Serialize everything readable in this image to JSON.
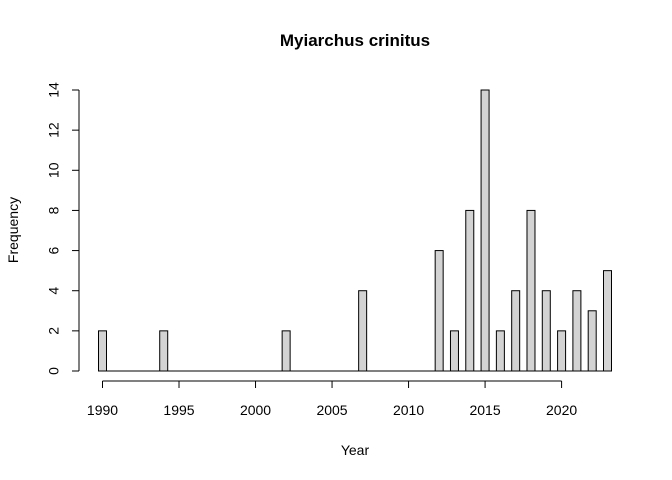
{
  "chart_data": {
    "type": "bar",
    "title": "Myiarchus crinitus",
    "xlabel": "Year",
    "ylabel": "Frequency",
    "x": [
      1990,
      1991,
      1992,
      1993,
      1994,
      1995,
      1996,
      1997,
      1998,
      1999,
      2000,
      2001,
      2002,
      2003,
      2004,
      2005,
      2006,
      2007,
      2008,
      2009,
      2010,
      2011,
      2012,
      2013,
      2014,
      2015,
      2016,
      2017,
      2018,
      2019,
      2020,
      2021,
      2022,
      2023
    ],
    "values": [
      2,
      0,
      0,
      0,
      2,
      0,
      0,
      0,
      0,
      0,
      0,
      0,
      2,
      0,
      0,
      0,
      0,
      4,
      0,
      0,
      0,
      0,
      6,
      2,
      8,
      14,
      2,
      4,
      8,
      4,
      2,
      4,
      3,
      5
    ],
    "xticks": [
      "1990",
      "1995",
      "2000",
      "2005",
      "2010",
      "2015",
      "2020"
    ],
    "yticks": [
      "0",
      "2",
      "4",
      "6",
      "8",
      "10",
      "12",
      "14"
    ],
    "xlim": [
      1990,
      2023
    ],
    "ylim": [
      0,
      14
    ],
    "grid": false,
    "legend": "none",
    "colors": {
      "bar_fill": "#d3d3d3",
      "bar_stroke": "#000000"
    }
  }
}
